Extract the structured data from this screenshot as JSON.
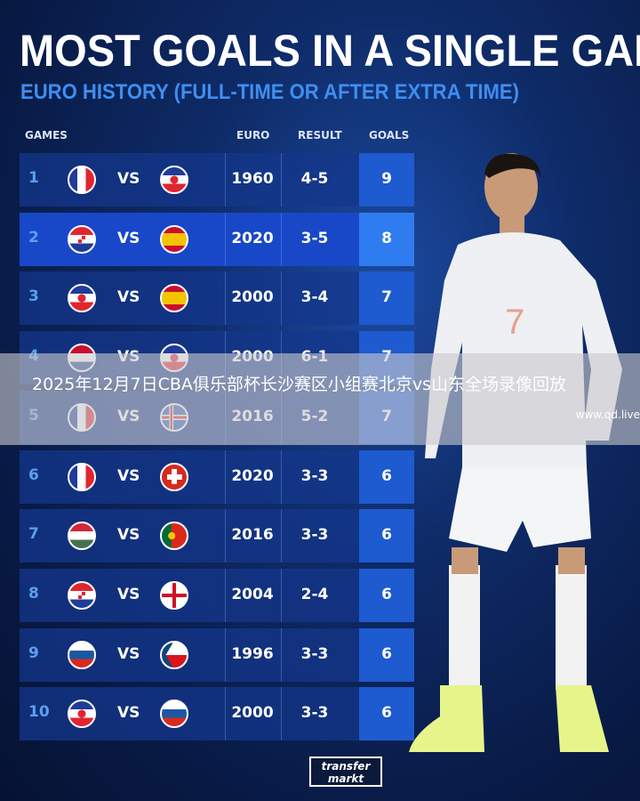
{
  "title": "MOST GOALS IN A SINGLE GAME",
  "subtitle": "EURO HISTORY (FULL-TIME OR AFTER EXTRA TIME)",
  "headers": {
    "games": "GAMES",
    "euro": "EURO",
    "result": "RESULT",
    "goals": "GOALS"
  },
  "vs_label": "VS",
  "rows": [
    {
      "rank": "1",
      "team1": "france",
      "team2": "yugoslavia",
      "euro": "1960",
      "result": "4-5",
      "goals": "9"
    },
    {
      "rank": "2",
      "team1": "croatia",
      "team2": "spain",
      "euro": "2020",
      "result": "3-5",
      "goals": "8"
    },
    {
      "rank": "3",
      "team1": "yugoslavia",
      "team2": "spain",
      "euro": "2000",
      "result": "3-4",
      "goals": "7"
    },
    {
      "rank": "4",
      "team1": "netherlands",
      "team2": "yugoslavia",
      "euro": "2000",
      "result": "6-1",
      "goals": "7"
    },
    {
      "rank": "5",
      "team1": "france",
      "team2": "iceland",
      "euro": "2016",
      "result": "5-2",
      "goals": "7"
    },
    {
      "rank": "6",
      "team1": "france",
      "team2": "switzerland",
      "euro": "2020",
      "result": "3-3",
      "goals": "6"
    },
    {
      "rank": "7",
      "team1": "hungary",
      "team2": "portugal",
      "euro": "2016",
      "result": "3-3",
      "goals": "6"
    },
    {
      "rank": "8",
      "team1": "croatia",
      "team2": "england",
      "euro": "2004",
      "result": "2-4",
      "goals": "6"
    },
    {
      "rank": "9",
      "team1": "russia",
      "team2": "czech-republic",
      "euro": "1996",
      "result": "3-3",
      "goals": "6"
    },
    {
      "rank": "10",
      "team1": "yugoslavia",
      "team2": "slovenia",
      "euro": "2000",
      "result": "3-3",
      "goals": "6"
    }
  ],
  "overlay": {
    "text": "2025年12月7日CBA俱乐部杯长沙赛区小组赛北京vs山东全场录像回放",
    "url": "www.qd.live"
  },
  "logo": {
    "line1": "transfer",
    "line2": "markt"
  },
  "player": {
    "shirt_number": "7"
  },
  "colors": {
    "accent": "#3e8ef0",
    "goals_column": "#1e5ad0",
    "highlight_row": "#1848c8"
  }
}
